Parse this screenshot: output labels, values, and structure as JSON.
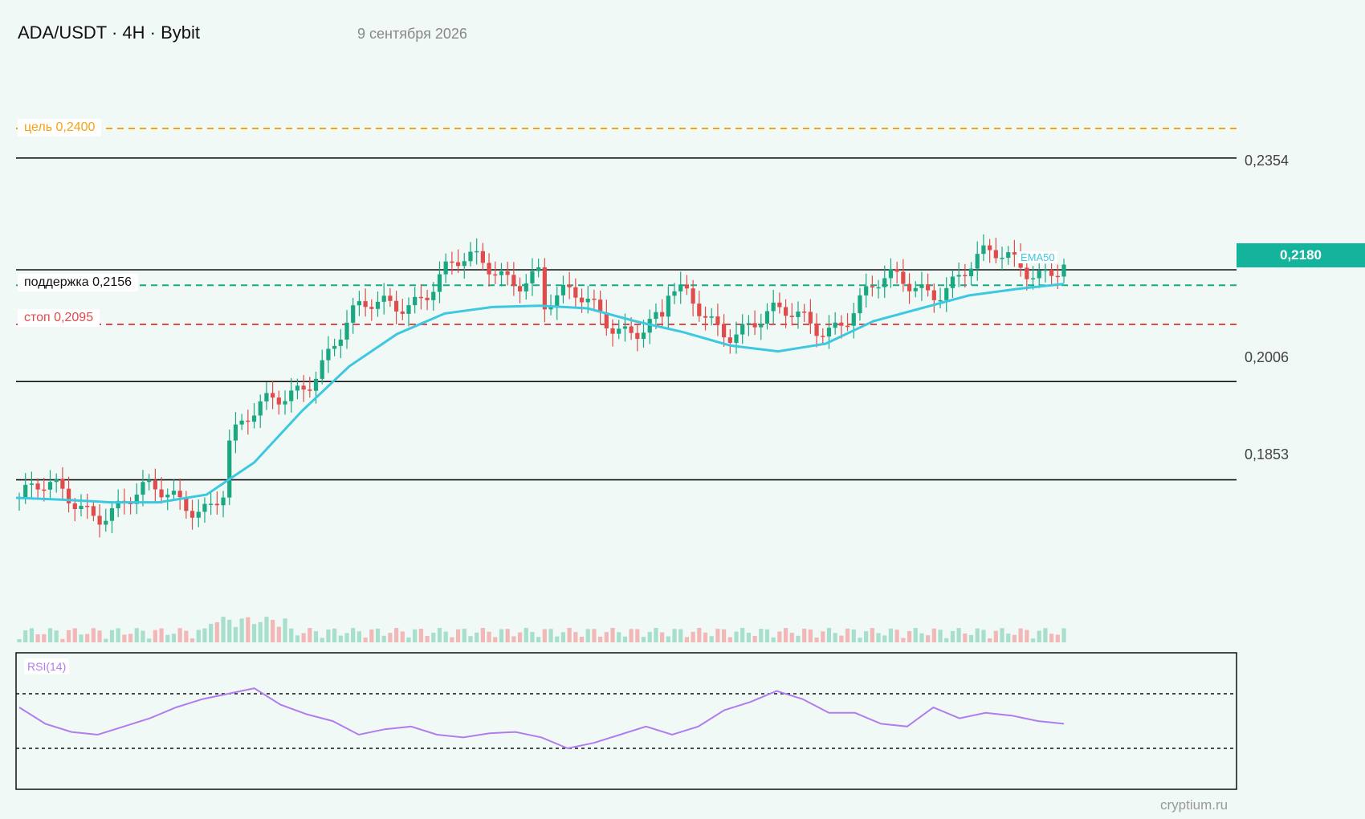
{
  "header": {
    "title": "ADA/USDT · 4H · Bybit",
    "date": "9 сентября 2026"
  },
  "watermark": "cryptium.ru",
  "levels": {
    "target": {
      "label": "цель 0,2400",
      "value": 0.24,
      "color": "#f5a313"
    },
    "support": {
      "label": "поддержка 0,2156",
      "value": 0.2156,
      "color": "#1aa883"
    },
    "stop": {
      "label": "стоп 0,2095",
      "value": 0.2095,
      "color": "#e04b4b"
    }
  },
  "price_labels": [
    {
      "text": "0,2354",
      "value": 0.2354
    },
    {
      "text": "0,2006",
      "value": 0.2006
    },
    {
      "text": "0,1853",
      "value": 0.1853
    }
  ],
  "last_price": {
    "text": "0,2180",
    "value": 0.218
  },
  "ema_label": "EMA50",
  "rsi_label": "RSI(14)",
  "colors": {
    "up": "#1aa883",
    "down": "#e04b4b",
    "ema": "#3cc8e0",
    "rsi": "#b07cf0"
  },
  "chart_data": {
    "type": "candlestick",
    "title": "ADA/USDT · 4H · Bybit",
    "series": [],
    "y_axis_labels": [
      "0,2354",
      "0,2006",
      "0,1853"
    ],
    "ylim": [
      0.17,
      0.255
    ],
    "horizontal_lines": [
      0.24,
      0.2354,
      0.218,
      0.2156,
      0.2095,
      0.2006,
      0.1853
    ],
    "ema50_approx_points": [
      0.1825,
      0.1822,
      0.1818,
      0.1818,
      0.183,
      0.188,
      0.196,
      0.203,
      0.208,
      0.2112,
      0.2122,
      0.2124,
      0.212,
      0.21,
      0.2083,
      0.2062,
      0.2053,
      0.2065,
      0.21,
      0.212,
      0.214,
      0.215,
      0.2158
    ],
    "rsi_levels": [
      70,
      30
    ],
    "rsi_approx_points": [
      60,
      48,
      42,
      40,
      46,
      52,
      60,
      66,
      70,
      74,
      62,
      55,
      50,
      40,
      44,
      46,
      40,
      38,
      41,
      42,
      38,
      30,
      34,
      40,
      46,
      40,
      46,
      58,
      64,
      72,
      66,
      56,
      56,
      48,
      46,
      60,
      52,
      56,
      54,
      50,
      48
    ]
  }
}
